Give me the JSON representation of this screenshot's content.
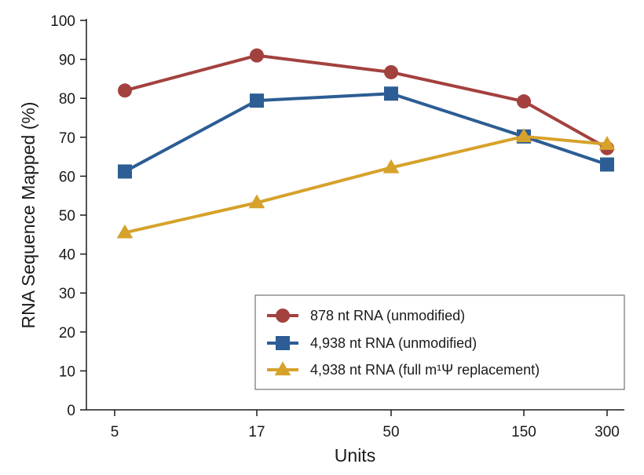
{
  "chart_data": {
    "type": "line",
    "categories": [
      "5",
      "17",
      "50",
      "150",
      "300"
    ],
    "xlabel": "Units",
    "ylabel": "RNA Sequence Mapped (%)",
    "ylim": [
      0,
      100
    ],
    "yticks": [
      "0",
      "10",
      "20",
      "30",
      "40",
      "50",
      "60",
      "70",
      "80",
      "90",
      "100"
    ],
    "grid": false,
    "legend_position": "bottom-right",
    "series": [
      {
        "name": "878 nt RNA (unmodified)",
        "marker": "circle",
        "color": "#a3413e",
        "values": [
          82,
          91,
          86.7,
          79.2,
          67.2
        ]
      },
      {
        "name": "4,938 nt RNA (unmodified)",
        "marker": "square",
        "color": "#2c5d94",
        "values": [
          61.2,
          79.4,
          81.2,
          70.2,
          63
        ]
      },
      {
        "name": "4,938 nt RNA (full m¹Ψ replacement)",
        "marker": "triangle",
        "color": "#d6a22b",
        "values": [
          45.5,
          53.2,
          62.2,
          70.2,
          68.2
        ]
      }
    ]
  }
}
